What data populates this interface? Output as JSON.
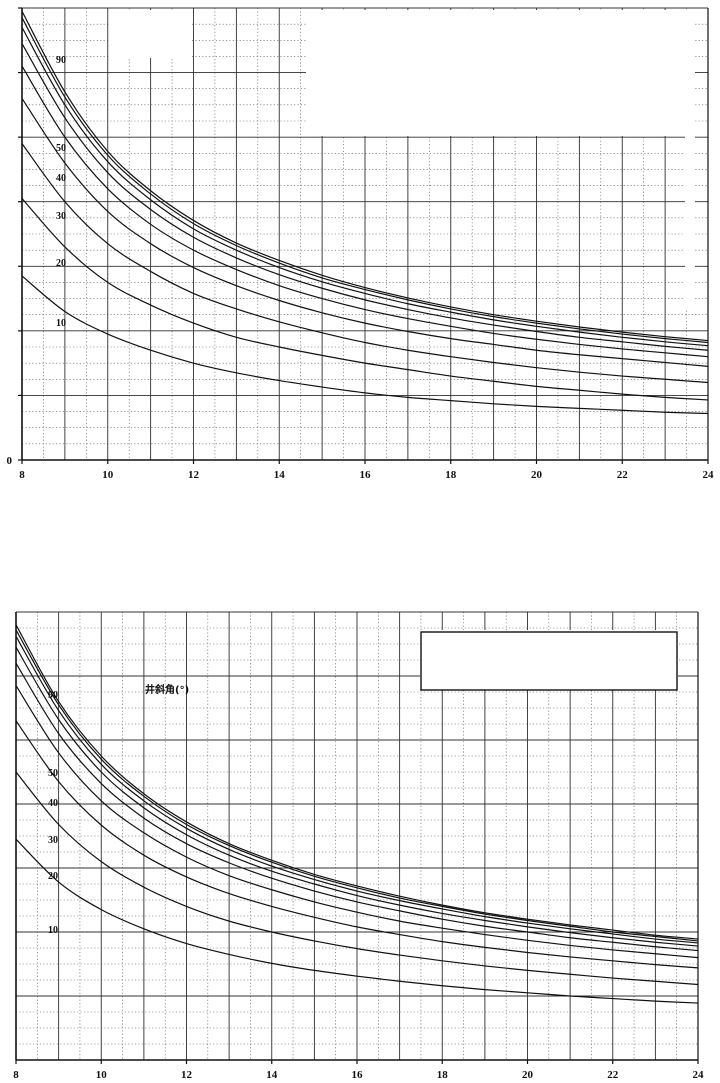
{
  "chart_data": [
    {
      "type": "line",
      "title": "",
      "xlabel": "",
      "ylabel": "",
      "xlim": [
        8,
        24
      ],
      "ylim": [
        0,
        7
      ],
      "x_ticks": [
        "8",
        "10",
        "12",
        "14",
        "16",
        "18",
        "20",
        "22",
        "24"
      ],
      "y_ticks": [
        "0",
        "",
        "",
        "",
        "",
        "",
        "",
        ""
      ],
      "legend_title": "",
      "grid": true,
      "x": [
        8,
        9,
        10,
        11,
        12,
        13,
        14,
        15,
        16,
        17,
        18,
        19,
        20,
        21,
        22,
        23,
        24
      ],
      "series": [
        {
          "label": "10",
          "values": [
            2.85,
            2.3,
            1.95,
            1.7,
            1.5,
            1.35,
            1.23,
            1.13,
            1.04,
            0.97,
            0.92,
            0.87,
            0.83,
            0.8,
            0.77,
            0.74,
            0.72
          ]
        },
        {
          "label": "20",
          "values": [
            4.05,
            3.3,
            2.75,
            2.4,
            2.12,
            1.9,
            1.75,
            1.62,
            1.5,
            1.4,
            1.3,
            1.22,
            1.14,
            1.08,
            1.02,
            0.97,
            0.93
          ]
        },
        {
          "label": "30",
          "values": [
            4.9,
            4.0,
            3.35,
            2.92,
            2.58,
            2.34,
            2.14,
            1.97,
            1.82,
            1.7,
            1.6,
            1.51,
            1.43,
            1.36,
            1.3,
            1.25,
            1.2
          ]
        },
        {
          "label": "40",
          "values": [
            5.6,
            4.6,
            3.85,
            3.35,
            2.98,
            2.7,
            2.47,
            2.28,
            2.12,
            1.99,
            1.88,
            1.79,
            1.7,
            1.63,
            1.57,
            1.51,
            1.45
          ]
        },
        {
          "label": "50",
          "values": [
            6.1,
            5.0,
            4.2,
            3.65,
            3.25,
            2.95,
            2.7,
            2.5,
            2.33,
            2.19,
            2.07,
            1.96,
            1.87,
            1.79,
            1.72,
            1.66,
            1.6
          ]
        },
        {
          "label": "",
          "values": [
            6.45,
            5.3,
            4.45,
            3.88,
            3.45,
            3.13,
            2.87,
            2.66,
            2.48,
            2.33,
            2.2,
            2.09,
            1.99,
            1.9,
            1.83,
            1.76,
            1.7
          ]
        },
        {
          "label": "",
          "values": [
            6.7,
            5.5,
            4.62,
            4.03,
            3.58,
            3.25,
            2.98,
            2.76,
            2.58,
            2.42,
            2.29,
            2.17,
            2.07,
            1.98,
            1.9,
            1.83,
            1.77
          ]
        },
        {
          "label": "",
          "values": [
            6.85,
            5.62,
            4.72,
            4.12,
            3.66,
            3.32,
            3.05,
            2.82,
            2.64,
            2.48,
            2.34,
            2.22,
            2.12,
            2.03,
            1.95,
            1.88,
            1.82
          ]
        },
        {
          "label": "90",
          "values": [
            6.95,
            5.7,
            4.78,
            4.17,
            3.71,
            3.36,
            3.09,
            2.86,
            2.67,
            2.51,
            2.37,
            2.25,
            2.15,
            2.06,
            1.98,
            1.91,
            1.85
          ]
        }
      ]
    },
    {
      "type": "line",
      "title": "",
      "xlabel": "",
      "ylabel": "",
      "xlim": [
        8,
        24
      ],
      "ylim": [
        0,
        7
      ],
      "x_ticks": [
        "8",
        "10",
        "12",
        "14",
        "16",
        "18",
        "20",
        "22",
        "24"
      ],
      "y_ticks": [],
      "legend_title": "井斜角(°)",
      "grid": true,
      "x": [
        8,
        9,
        10,
        11,
        12,
        13,
        14,
        15,
        16,
        17,
        18,
        19,
        20,
        21,
        22,
        23,
        24
      ],
      "series": [
        {
          "label": "10",
          "values": [
            3.45,
            2.78,
            2.35,
            2.05,
            1.82,
            1.65,
            1.51,
            1.4,
            1.31,
            1.23,
            1.16,
            1.1,
            1.05,
            1.0,
            0.96,
            0.92,
            0.89
          ]
        },
        {
          "label": "20",
          "values": [
            4.5,
            3.68,
            3.1,
            2.7,
            2.4,
            2.17,
            2.0,
            1.86,
            1.74,
            1.64,
            1.55,
            1.47,
            1.4,
            1.34,
            1.28,
            1.23,
            1.18
          ]
        },
        {
          "label": "30",
          "values": [
            5.3,
            4.35,
            3.67,
            3.2,
            2.86,
            2.6,
            2.4,
            2.23,
            2.08,
            1.96,
            1.85,
            1.76,
            1.68,
            1.61,
            1.55,
            1.49,
            1.44
          ]
        },
        {
          "label": "40",
          "values": [
            5.85,
            4.8,
            4.05,
            3.55,
            3.17,
            2.88,
            2.66,
            2.47,
            2.31,
            2.17,
            2.06,
            1.96,
            1.87,
            1.79,
            1.72,
            1.66,
            1.6
          ]
        },
        {
          "label": "50",
          "values": [
            6.2,
            5.1,
            4.32,
            3.78,
            3.38,
            3.08,
            2.84,
            2.64,
            2.47,
            2.33,
            2.2,
            2.09,
            2.0,
            1.91,
            1.84,
            1.77,
            1.71
          ]
        },
        {
          "label": "",
          "values": [
            6.45,
            5.32,
            4.5,
            3.94,
            3.52,
            3.2,
            2.95,
            2.75,
            2.57,
            2.42,
            2.29,
            2.18,
            2.08,
            1.99,
            1.91,
            1.84,
            1.78
          ]
        },
        {
          "label": "",
          "values": [
            6.62,
            5.46,
            4.62,
            4.05,
            3.62,
            3.29,
            3.03,
            2.82,
            2.64,
            2.49,
            2.36,
            2.24,
            2.14,
            2.05,
            1.97,
            1.89,
            1.83
          ]
        },
        {
          "label": "",
          "values": [
            6.72,
            5.55,
            4.7,
            4.12,
            3.68,
            3.35,
            3.09,
            2.87,
            2.69,
            2.53,
            2.4,
            2.28,
            2.18,
            2.09,
            2.0,
            1.93,
            1.86
          ]
        },
        {
          "label": "90",
          "values": [
            6.8,
            5.6,
            4.75,
            4.16,
            3.72,
            3.38,
            3.12,
            2.9,
            2.72,
            2.56,
            2.42,
            2.3,
            2.2,
            2.11,
            2.03,
            1.95,
            1.89
          ]
        }
      ]
    }
  ]
}
